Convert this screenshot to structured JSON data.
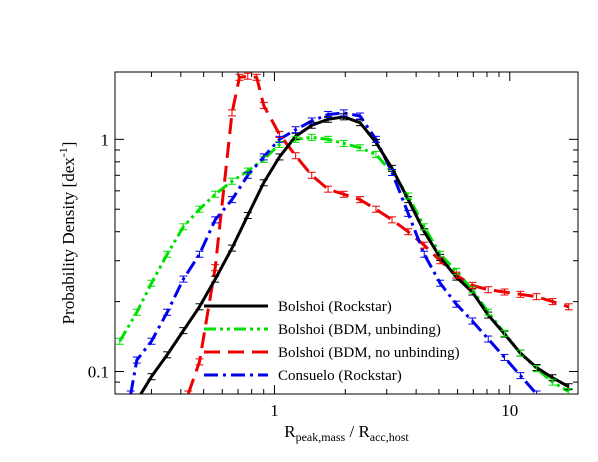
{
  "chart_data": {
    "type": "line",
    "xlabel": {
      "base": "R",
      "sub1": "peak,mass",
      "mid": " / R",
      "sub2": "acc,host"
    },
    "ylabel": {
      "text": "Probability Density [dex",
      "sup": "-1",
      "close": "]"
    },
    "xscale": "log",
    "yscale": "log",
    "xlim": [
      0.21,
      19.5
    ],
    "ylim": [
      0.08,
      1.95
    ],
    "x_ticks": [
      {
        "value": 1,
        "label": "1"
      },
      {
        "value": 10,
        "label": "10"
      }
    ],
    "y_ticks": [
      {
        "value": 0.1,
        "label": "0.1"
      },
      {
        "value": 1,
        "label": "1"
      }
    ],
    "grid": false,
    "legend": "bottom-left",
    "series": [
      {
        "name": "Bolshoi (Rockstar)",
        "color": "#000000",
        "dash": "solid",
        "x": [
          0.26,
          0.3,
          0.35,
          0.41,
          0.48,
          0.56,
          0.66,
          0.77,
          0.9,
          1.05,
          1.23,
          1.44,
          1.69,
          1.97,
          2.31,
          2.7,
          3.16,
          3.7,
          4.33,
          5.06,
          5.93,
          6.93,
          8.1,
          9.5,
          11.1,
          13.0,
          15.2,
          17.8
        ],
        "y": [
          0.075,
          0.095,
          0.118,
          0.15,
          0.19,
          0.25,
          0.34,
          0.47,
          0.65,
          0.84,
          1.03,
          1.15,
          1.22,
          1.25,
          1.18,
          0.97,
          0.75,
          0.55,
          0.4,
          0.31,
          0.255,
          0.22,
          0.175,
          0.145,
          0.12,
          0.104,
          0.094,
          0.086
        ]
      },
      {
        "name": "Bolshoi (BDM, unbinding)",
        "color": "#00e000",
        "dash": "dashdotdot",
        "x": [
          0.22,
          0.26,
          0.3,
          0.35,
          0.41,
          0.48,
          0.56,
          0.66,
          0.77,
          0.9,
          1.05,
          1.23,
          1.44,
          1.69,
          1.97,
          2.31,
          2.7,
          3.16,
          3.7,
          4.33,
          5.06,
          5.93,
          6.93,
          8.1,
          9.5,
          11.1,
          13.0,
          15.2,
          17.8
        ],
        "y": [
          0.135,
          0.18,
          0.24,
          0.32,
          0.42,
          0.5,
          0.58,
          0.66,
          0.73,
          0.82,
          0.95,
          1.0,
          1.02,
          1.0,
          0.96,
          0.92,
          0.86,
          0.72,
          0.57,
          0.42,
          0.32,
          0.27,
          0.225,
          0.18,
          0.146,
          0.12,
          0.103,
          0.09,
          0.082
        ]
      },
      {
        "name": "Bolshoi (BDM, no unbinding)",
        "color": "#ee0000",
        "dash": "dashed",
        "x": [
          0.43,
          0.48,
          0.56,
          0.66,
          0.71,
          0.77,
          0.84,
          0.9,
          1.05,
          1.23,
          1.44,
          1.69,
          1.97,
          2.31,
          2.7,
          3.16,
          3.7,
          4.33,
          5.06,
          5.93,
          6.93,
          8.1,
          9.5,
          11.1,
          13.0,
          15.2,
          17.8
        ],
        "y": [
          0.08,
          0.11,
          0.28,
          1.3,
          1.85,
          1.87,
          1.85,
          1.4,
          1.05,
          0.85,
          0.7,
          0.61,
          0.58,
          0.55,
          0.5,
          0.45,
          0.4,
          0.35,
          0.3,
          0.26,
          0.235,
          0.225,
          0.22,
          0.215,
          0.21,
          0.2,
          0.19
        ]
      },
      {
        "name": "Consuelo (Rockstar)",
        "color": "#0000ee",
        "dash": "dashdot",
        "x": [
          0.245,
          0.26,
          0.3,
          0.35,
          0.41,
          0.48,
          0.56,
          0.66,
          0.77,
          0.9,
          1.05,
          1.23,
          1.44,
          1.69,
          1.97,
          2.31,
          2.7,
          3.16,
          3.7,
          4.33,
          5.06,
          5.93,
          6.93,
          8.1,
          9.5,
          11.1,
          13.0
        ],
        "y": [
          0.08,
          0.112,
          0.135,
          0.18,
          0.25,
          0.32,
          0.45,
          0.55,
          0.7,
          0.84,
          1.0,
          1.1,
          1.2,
          1.28,
          1.3,
          1.26,
          1.0,
          0.72,
          0.48,
          0.32,
          0.24,
          0.195,
          0.165,
          0.138,
          0.115,
          0.096,
          0.08
        ]
      }
    ],
    "legend_entries": [
      "Bolshoi (Rockstar)",
      "Bolshoi (BDM, unbinding)",
      "Bolshoi (BDM, no unbinding)",
      "Consuelo (Rockstar)"
    ]
  }
}
